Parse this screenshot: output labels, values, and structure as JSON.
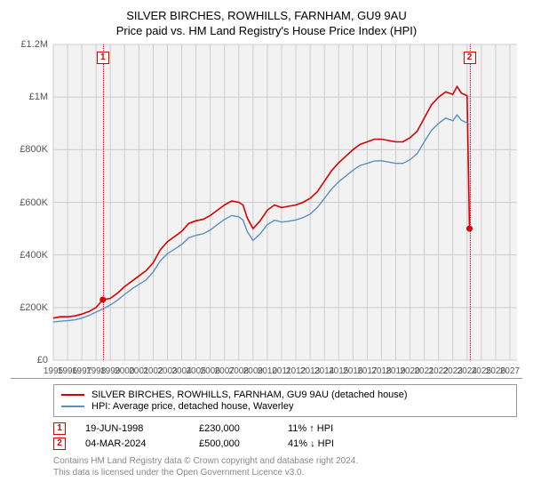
{
  "title1": "SILVER BIRCHES, ROWHILLS, FARNHAM, GU9 9AU",
  "title2": "Price paid vs. HM Land Registry's House Price Index (HPI)",
  "chart": {
    "type": "line",
    "plot_bg": "#f2f2f2",
    "grid_color": "#cccccc",
    "x_range": [
      1995,
      2027.5
    ],
    "x_ticks": [
      1995,
      1996,
      1997,
      1998,
      1999,
      2000,
      2001,
      2002,
      2003,
      2004,
      2005,
      2006,
      2007,
      2008,
      2009,
      2010,
      2011,
      2012,
      2013,
      2014,
      2015,
      2016,
      2017,
      2018,
      2019,
      2020,
      2021,
      2022,
      2023,
      2024,
      2025,
      2026,
      2027
    ],
    "y_range": [
      0,
      1200000
    ],
    "y_ticks": [
      {
        "v": 0,
        "label": "£0"
      },
      {
        "v": 200000,
        "label": "£200K"
      },
      {
        "v": 400000,
        "label": "£400K"
      },
      {
        "v": 600000,
        "label": "£600K"
      },
      {
        "v": 800000,
        "label": "£800K"
      },
      {
        "v": 1000000,
        "label": "£1M"
      },
      {
        "v": 1200000,
        "label": "£1.2M"
      }
    ],
    "series": [
      {
        "name": "price_paid",
        "color": "#d80000",
        "width": 1.6,
        "legend": "SILVER BIRCHES, ROWHILLS, FARNHAM, GU9 9AU (detached house)",
        "points": [
          [
            1995.0,
            160000
          ],
          [
            1995.5,
            165000
          ],
          [
            1996.0,
            165000
          ],
          [
            1996.5,
            168000
          ],
          [
            1997.0,
            175000
          ],
          [
            1997.5,
            185000
          ],
          [
            1998.0,
            200000
          ],
          [
            1998.47,
            230000
          ],
          [
            1999.0,
            235000
          ],
          [
            1999.5,
            255000
          ],
          [
            2000.0,
            280000
          ],
          [
            2000.5,
            300000
          ],
          [
            2001.0,
            320000
          ],
          [
            2001.5,
            340000
          ],
          [
            2002.0,
            370000
          ],
          [
            2002.5,
            420000
          ],
          [
            2003.0,
            450000
          ],
          [
            2003.5,
            470000
          ],
          [
            2004.0,
            490000
          ],
          [
            2004.5,
            520000
          ],
          [
            2005.0,
            530000
          ],
          [
            2005.5,
            535000
          ],
          [
            2006.0,
            550000
          ],
          [
            2006.5,
            570000
          ],
          [
            2007.0,
            590000
          ],
          [
            2007.5,
            605000
          ],
          [
            2008.0,
            600000
          ],
          [
            2008.3,
            590000
          ],
          [
            2008.6,
            540000
          ],
          [
            2009.0,
            500000
          ],
          [
            2009.5,
            530000
          ],
          [
            2010.0,
            570000
          ],
          [
            2010.5,
            590000
          ],
          [
            2011.0,
            580000
          ],
          [
            2011.5,
            585000
          ],
          [
            2012.0,
            590000
          ],
          [
            2012.5,
            600000
          ],
          [
            2013.0,
            615000
          ],
          [
            2013.5,
            640000
          ],
          [
            2014.0,
            680000
          ],
          [
            2014.5,
            720000
          ],
          [
            2015.0,
            750000
          ],
          [
            2015.5,
            775000
          ],
          [
            2016.0,
            800000
          ],
          [
            2016.5,
            820000
          ],
          [
            2017.0,
            830000
          ],
          [
            2017.5,
            840000
          ],
          [
            2018.0,
            840000
          ],
          [
            2018.5,
            835000
          ],
          [
            2019.0,
            830000
          ],
          [
            2019.5,
            830000
          ],
          [
            2020.0,
            845000
          ],
          [
            2020.5,
            870000
          ],
          [
            2021.0,
            920000
          ],
          [
            2021.5,
            970000
          ],
          [
            2022.0,
            1000000
          ],
          [
            2022.5,
            1020000
          ],
          [
            2023.0,
            1010000
          ],
          [
            2023.3,
            1040000
          ],
          [
            2023.6,
            1015000
          ],
          [
            2024.0,
            1005000
          ],
          [
            2024.17,
            500000
          ]
        ]
      },
      {
        "name": "hpi",
        "color": "#5b8fc6",
        "width": 1.4,
        "legend": "HPI: Average price, detached house, Waverley",
        "points": [
          [
            1995.0,
            145000
          ],
          [
            1995.5,
            148000
          ],
          [
            1996.0,
            150000
          ],
          [
            1996.5,
            153000
          ],
          [
            1997.0,
            160000
          ],
          [
            1997.5,
            170000
          ],
          [
            1998.0,
            183000
          ],
          [
            1998.5,
            195000
          ],
          [
            1999.0,
            210000
          ],
          [
            1999.5,
            228000
          ],
          [
            2000.0,
            250000
          ],
          [
            2000.5,
            270000
          ],
          [
            2001.0,
            288000
          ],
          [
            2001.5,
            305000
          ],
          [
            2002.0,
            335000
          ],
          [
            2002.5,
            378000
          ],
          [
            2003.0,
            405000
          ],
          [
            2003.5,
            422000
          ],
          [
            2004.0,
            440000
          ],
          [
            2004.5,
            465000
          ],
          [
            2005.0,
            475000
          ],
          [
            2005.5,
            480000
          ],
          [
            2006.0,
            495000
          ],
          [
            2006.5,
            515000
          ],
          [
            2007.0,
            535000
          ],
          [
            2007.5,
            550000
          ],
          [
            2008.0,
            545000
          ],
          [
            2008.3,
            532000
          ],
          [
            2008.6,
            488000
          ],
          [
            2009.0,
            455000
          ],
          [
            2009.5,
            480000
          ],
          [
            2010.0,
            515000
          ],
          [
            2010.5,
            532000
          ],
          [
            2011.0,
            525000
          ],
          [
            2011.5,
            528000
          ],
          [
            2012.0,
            533000
          ],
          [
            2012.5,
            542000
          ],
          [
            2013.0,
            555000
          ],
          [
            2013.5,
            580000
          ],
          [
            2014.0,
            615000
          ],
          [
            2014.5,
            650000
          ],
          [
            2015.0,
            678000
          ],
          [
            2015.5,
            700000
          ],
          [
            2016.0,
            722000
          ],
          [
            2016.5,
            740000
          ],
          [
            2017.0,
            748000
          ],
          [
            2017.5,
            757000
          ],
          [
            2018.0,
            758000
          ],
          [
            2018.5,
            753000
          ],
          [
            2019.0,
            748000
          ],
          [
            2019.5,
            748000
          ],
          [
            2020.0,
            762000
          ],
          [
            2020.5,
            785000
          ],
          [
            2021.0,
            830000
          ],
          [
            2021.5,
            873000
          ],
          [
            2022.0,
            900000
          ],
          [
            2022.5,
            920000
          ],
          [
            2023.0,
            910000
          ],
          [
            2023.3,
            932000
          ],
          [
            2023.6,
            912000
          ],
          [
            2024.0,
            902000
          ],
          [
            2024.17,
            895000
          ]
        ]
      }
    ],
    "markers": [
      {
        "id": "1",
        "color": "#d80000",
        "year": 1998.47,
        "date": "19-JUN-1998",
        "price": "£230,000",
        "change": "11% ↑ HPI",
        "dot_y": 230000
      },
      {
        "id": "2",
        "color": "#d80000",
        "year": 2024.17,
        "date": "04-MAR-2024",
        "price": "£500,000",
        "change": "41% ↓ HPI",
        "dot_y": 500000
      }
    ]
  },
  "attribution1": "Contains HM Land Registry data © Crown copyright and database right 2024.",
  "attribution2": "This data is licensed under the Open Government Licence v3.0."
}
